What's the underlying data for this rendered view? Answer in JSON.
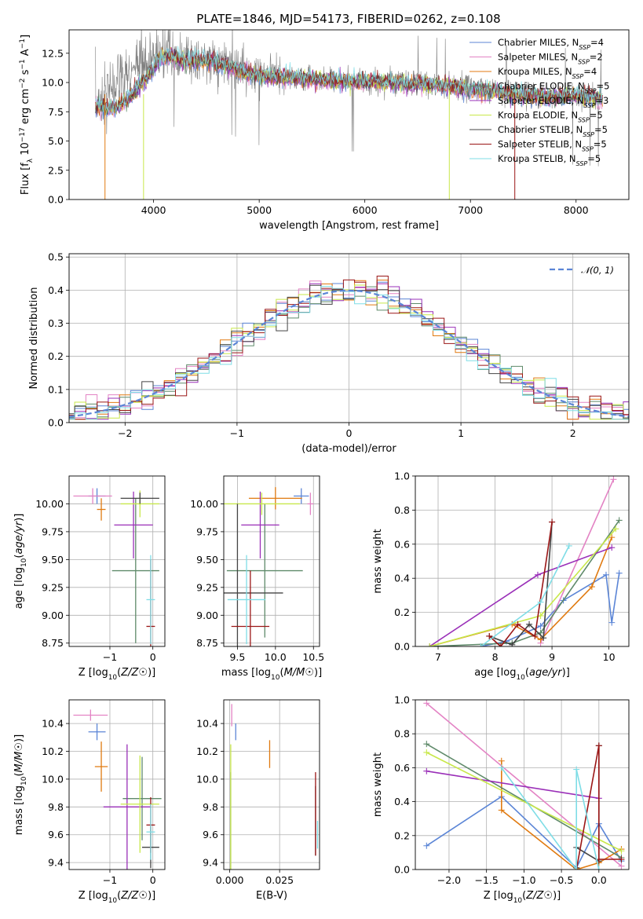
{
  "figure_title": "PLATE=1846, MJD=54173, FIBERID=0262, z=0.108",
  "models": [
    {
      "name": "Chabrier MILES",
      "nssp": "4",
      "color": "#5b85d6"
    },
    {
      "name": "Salpeter MILES",
      "nssp": "2",
      "color": "#e383c4"
    },
    {
      "name": "Kroupa MILES",
      "nssp": "4",
      "color": "#e07a10"
    },
    {
      "name": "Chabrier ELODIE",
      "nssp": "5",
      "color": "#5f8a6a"
    },
    {
      "name": "Salpeter ELODIE",
      "nssp": "3",
      "color": "#9a2fb8"
    },
    {
      "name": "Kroupa ELODIE",
      "nssp": "5",
      "color": "#c8e84a"
    },
    {
      "name": "Chabrier STELIB",
      "nssp": "5",
      "color": "#444444"
    },
    {
      "name": "Salpeter STELIB",
      "nssp": "5",
      "color": "#9a1616"
    },
    {
      "name": "Kroupa STELIB",
      "nssp": "5",
      "color": "#7fdde6"
    }
  ],
  "legend_suffix": "N",
  "legend_sub": "SSP",
  "chart_data": [
    {
      "id": "spectrum",
      "type": "line",
      "xlabel": "wavelength [Angstrom, rest frame]",
      "ylabel": "Flux [f_λ 10^-17 erg cm^-2 s^-1 A^-1]",
      "xlim": [
        3200,
        8500
      ],
      "ylim": [
        0,
        14.5
      ],
      "xticks": [
        4000,
        5000,
        6000,
        7000,
        8000
      ],
      "yticks": [
        0.0,
        2.5,
        5.0,
        7.5,
        10.0,
        12.5
      ],
      "legend_position": "top-right",
      "data_color": "#808080",
      "data_envelope": {
        "x": [
          3450,
          3550,
          3650,
          3750,
          3850,
          3950,
          4050,
          4150,
          4300,
          4500,
          4750,
          4900,
          5100,
          5300,
          5600,
          5900,
          6200,
          6500,
          6800,
          7100,
          7400,
          7700,
          8000,
          8250
        ],
        "y": [
          8.0,
          9.0,
          10.0,
          10.5,
          11.0,
          11.8,
          12.5,
          12.3,
          12.0,
          12.0,
          11.5,
          10.8,
          10.5,
          10.5,
          10.3,
          10.1,
          10.0,
          10.0,
          9.7,
          9.5,
          9.1,
          8.8,
          9.0,
          8.8
        ]
      },
      "model_curve": {
        "x": [
          3450,
          3550,
          3650,
          3750,
          3850,
          3950,
          4050,
          4150,
          4300,
          4500,
          4750,
          4900,
          5100,
          5300,
          5600,
          5900,
          6200,
          6500,
          6800,
          7100,
          7400,
          7700,
          8000,
          8250
        ],
        "y": [
          8.0,
          7.8,
          7.9,
          8.5,
          9.5,
          10.5,
          12.0,
          12.3,
          11.8,
          11.9,
          11.3,
          10.7,
          10.4,
          10.4,
          10.2,
          10.1,
          10.0,
          9.9,
          9.6,
          9.4,
          9.0,
          8.7,
          8.9,
          8.6
        ]
      }
    },
    {
      "id": "residuals",
      "type": "line",
      "xlabel": "(data-model)/error",
      "ylabel": "Normed distribution",
      "xlim": [
        -2.5,
        2.5
      ],
      "ylim": [
        0,
        0.51
      ],
      "xticks": [
        -2,
        -1,
        0,
        1,
        2
      ],
      "yticks": [
        0.0,
        0.1,
        0.2,
        0.3,
        0.4,
        0.5
      ],
      "reference": {
        "name": "N(0,1)",
        "type": "gaussian",
        "mean": 0,
        "sigma": 1,
        "color": "#5b85d6"
      },
      "legend_position": "top-right",
      "histogram": {
        "bin_width": 0.1,
        "step": "mid"
      }
    },
    {
      "id": "age-vs-Z",
      "type": "scatter",
      "xlabel": "Z [log10(Z/Z☉)]",
      "ylabel": "age [log10(age/yr)]",
      "xlim": [
        -1.95,
        0.28
      ],
      "ylim": [
        8.72,
        10.25
      ],
      "xticks": [
        -1,
        0
      ],
      "yticks": [
        8.75,
        9.0,
        9.25,
        9.5,
        9.75,
        10.0
      ],
      "points": [
        {
          "model": 0,
          "x": -1.3,
          "xerr": 0.2,
          "y": 10.07,
          "yerr": 0.07
        },
        {
          "model": 1,
          "x": -1.4,
          "xerr": 0.45,
          "y": 10.07,
          "yerr": 0.07
        },
        {
          "model": 2,
          "x": -1.2,
          "xerr": 0.1,
          "y": 9.95,
          "yerr": 0.1
        },
        {
          "model": 3,
          "x": -0.4,
          "xerr": 0.55,
          "y": 9.4,
          "yerr": 0.65
        },
        {
          "model": 4,
          "x": -0.45,
          "xerr": 0.45,
          "y": 9.81,
          "yerr": 0.3
        },
        {
          "model": 5,
          "x": -0.3,
          "xerr": 0.45,
          "y": 10.0,
          "yerr": 0.12
        },
        {
          "model": 6,
          "x": -0.3,
          "xerr": 0.45,
          "y": 10.05,
          "yerr": 0.05
        },
        {
          "model": 7,
          "x": -0.05,
          "xerr": 0.1,
          "y": 8.9,
          "yerr": 0.6
        },
        {
          "model": 8,
          "x": -0.05,
          "xerr": 0.1,
          "y": 9.14,
          "yerr": 0.4
        }
      ]
    },
    {
      "id": "age-vs-mass",
      "type": "scatter",
      "xlabel": "mass [log10(M/M☉)]",
      "ylabel": "",
      "xlim": [
        9.32,
        10.58
      ],
      "ylim": [
        8.72,
        10.25
      ],
      "xticks": [
        9.5,
        10.0,
        10.5
      ],
      "yticks": [
        8.75,
        9.0,
        9.25,
        9.5,
        9.75,
        10.0
      ],
      "points": [
        {
          "model": 0,
          "x": 10.34,
          "xerr": 0.1,
          "y": 10.07,
          "yerr": 0.07
        },
        {
          "model": 1,
          "x": 10.46,
          "xerr": 0.04,
          "y": 10.0,
          "yerr": 0.1
        },
        {
          "model": 2,
          "x": 10.0,
          "xerr": 0.35,
          "y": 10.05,
          "yerr": 0.1
        },
        {
          "model": 3,
          "x": 9.86,
          "xerr": 0.5,
          "y": 9.4,
          "yerr": 0.6
        },
        {
          "model": 4,
          "x": 9.8,
          "xerr": 0.25,
          "y": 9.81,
          "yerr": 0.3
        },
        {
          "model": 5,
          "x": 9.82,
          "xerr": 0.5,
          "y": 10.0,
          "yerr": 0.1
        },
        {
          "model": 6,
          "x": 9.5,
          "xerr": 0.6,
          "y": 9.2,
          "yerr": 0.8
        },
        {
          "model": 7,
          "x": 9.67,
          "xerr": 0.25,
          "y": 8.9,
          "yerr": 0.5
        },
        {
          "model": 8,
          "x": 9.62,
          "xerr": 0.25,
          "y": 9.14,
          "yerr": 0.4
        }
      ]
    },
    {
      "id": "weight-vs-age",
      "type": "line",
      "xlabel": "age [log10(age/yr)]",
      "ylabel": "mass weight",
      "xlim": [
        6.6,
        10.35
      ],
      "ylim": [
        0,
        1.0
      ],
      "xticks": [
        7,
        8,
        9,
        10
      ],
      "yticks": [
        0.0,
        0.2,
        0.4,
        0.6,
        0.8,
        1.0
      ],
      "series": [
        {
          "model": 0,
          "x": [
            7.75,
            8.2,
            8.8,
            9.2,
            9.95,
            10.05,
            10.18
          ],
          "y": [
            0.0,
            0.03,
            0.12,
            0.27,
            0.42,
            0.14,
            0.43
          ]
        },
        {
          "model": 1,
          "x": [
            8.8,
            10.08
          ],
          "y": [
            0.02,
            0.98
          ]
        },
        {
          "model": 2,
          "x": [
            6.85,
            8.3,
            8.8,
            9.7,
            10.05
          ],
          "y": [
            0.0,
            0.13,
            0.04,
            0.35,
            0.64
          ]
        },
        {
          "model": 3,
          "x": [
            6.85,
            8.3,
            8.8,
            10.18
          ],
          "y": [
            0.0,
            0.02,
            0.08,
            0.74
          ]
        },
        {
          "model": 4,
          "x": [
            6.85,
            8.75,
            10.05
          ],
          "y": [
            0.0,
            0.42,
            0.58
          ]
        },
        {
          "model": 5,
          "x": [
            6.85,
            8.8,
            10.12
          ],
          "y": [
            0.0,
            0.18,
            0.69
          ]
        },
        {
          "model": 6,
          "x": [
            7.9,
            8.3,
            8.6,
            8.85,
            9.0
          ],
          "y": [
            0.06,
            0.01,
            0.13,
            0.05,
            0.73
          ]
        },
        {
          "model": 7,
          "x": [
            7.9,
            8.1,
            8.4,
            8.7,
            9.0
          ],
          "y": [
            0.06,
            0.0,
            0.13,
            0.06,
            0.73
          ]
        },
        {
          "model": 8,
          "x": [
            7.75,
            8.8,
            9.3
          ],
          "y": [
            0.0,
            0.26,
            0.59
          ]
        }
      ]
    },
    {
      "id": "mass-vs-Z",
      "type": "scatter",
      "xlabel": "Z [log10(Z/Z☉)]",
      "ylabel": "mass [log10(M/M☉)]",
      "xlim": [
        -1.95,
        0.28
      ],
      "ylim": [
        9.35,
        10.57
      ],
      "xticks": [
        -1,
        0
      ],
      "yticks": [
        9.4,
        9.6,
        9.8,
        10.0,
        10.2,
        10.4
      ],
      "points": [
        {
          "model": 0,
          "x": -1.3,
          "xerr": 0.2,
          "y": 10.34,
          "yerr": 0.06
        },
        {
          "model": 1,
          "x": -1.45,
          "xerr": 0.4,
          "y": 10.46,
          "yerr": 0.04
        },
        {
          "model": 2,
          "x": -1.2,
          "xerr": 0.15,
          "y": 10.09,
          "yerr": 0.18
        },
        {
          "model": 3,
          "x": -0.25,
          "xerr": 0.45,
          "y": 9.86,
          "yerr": 0.3
        },
        {
          "model": 4,
          "x": -0.6,
          "xerr": 0.55,
          "y": 9.8,
          "yerr": 0.45
        },
        {
          "model": 5,
          "x": -0.3,
          "xerr": 0.45,
          "y": 9.82,
          "yerr": 0.35
        },
        {
          "model": 6,
          "x": -0.05,
          "xerr": 0.2,
          "y": 9.51,
          "yerr": 0.15
        },
        {
          "model": 7,
          "x": -0.05,
          "xerr": 0.1,
          "y": 9.67,
          "yerr": 0.2
        },
        {
          "model": 8,
          "x": -0.05,
          "xerr": 0.1,
          "y": 9.62,
          "yerr": 0.2
        }
      ]
    },
    {
      "id": "mass-vs-ebv",
      "type": "scatter",
      "xlabel": "E(B-V)",
      "ylabel": "",
      "xlim": [
        -0.003,
        0.045
      ],
      "ylim": [
        9.35,
        10.57
      ],
      "xticks": [
        0.0,
        0.025
      ],
      "yticks": [
        9.4,
        9.6,
        9.8,
        10.0,
        10.2,
        10.4
      ],
      "points": [
        {
          "model": 0,
          "x": 0.003,
          "y": 10.34,
          "yerr": 0.06
        },
        {
          "model": 1,
          "x": 0.001,
          "y": 10.46,
          "yerr": 0.08
        },
        {
          "model": 2,
          "x": 0.02,
          "y": 10.18,
          "yerr": 0.1
        },
        {
          "model": 3,
          "x": 0.0005,
          "y": 9.7,
          "yerr": 0.35
        },
        {
          "model": 5,
          "x": 0.0005,
          "y": 9.8,
          "yerr": 0.45
        },
        {
          "model": 6,
          "x": 0.043,
          "y": 9.7,
          "yerr": 0.25
        },
        {
          "model": 7,
          "x": 0.043,
          "y": 9.75,
          "yerr": 0.3
        },
        {
          "model": 8,
          "x": 0.044,
          "y": 9.6,
          "yerr": 0.1
        }
      ]
    },
    {
      "id": "weight-vs-Z",
      "type": "line",
      "xlabel": "Z [log10(Z/Z☉)]",
      "ylabel": "mass weight",
      "xlim": [
        -2.45,
        0.4
      ],
      "ylim": [
        0,
        1.0
      ],
      "xticks": [
        -2.0,
        -1.5,
        -1.0,
        -0.5,
        0.0
      ],
      "yticks": [
        0.0,
        0.2,
        0.4,
        0.6,
        0.8,
        1.0
      ],
      "series": [
        {
          "model": 0,
          "x": [
            -2.3,
            -1.3,
            -0.3,
            0.0,
            0.3
          ],
          "y": [
            0.14,
            0.43,
            0.01,
            0.27,
            0.05
          ]
        },
        {
          "model": 1,
          "x": [
            -2.3,
            0.3
          ],
          "y": [
            0.98,
            0.02
          ]
        },
        {
          "model": 2,
          "x": [
            -1.3,
            -1.3,
            -0.3,
            0.0,
            0.3
          ],
          "y": [
            0.64,
            0.35,
            0.0,
            0.04,
            0.12
          ]
        },
        {
          "model": 3,
          "x": [
            -2.3,
            0.3
          ],
          "y": [
            0.74,
            0.07
          ]
        },
        {
          "model": 4,
          "x": [
            -2.3,
            0.0
          ],
          "y": [
            0.58,
            0.42
          ]
        },
        {
          "model": 5,
          "x": [
            -2.3,
            0.3
          ],
          "y": [
            0.69,
            0.11
          ]
        },
        {
          "model": 6,
          "x": [
            -0.3,
            -0.3,
            0.0,
            0.0
          ],
          "y": [
            0.01,
            0.13,
            0.05,
            0.73
          ]
        },
        {
          "model": 7,
          "x": [
            -0.3,
            0.0,
            0.0,
            0.3
          ],
          "y": [
            0.0,
            0.73,
            0.06,
            0.06
          ]
        },
        {
          "model": 8,
          "x": [
            -1.3,
            -0.3,
            -0.3,
            0.0
          ],
          "y": [
            0.6,
            0.0,
            0.59,
            0.0
          ]
        }
      ]
    }
  ]
}
